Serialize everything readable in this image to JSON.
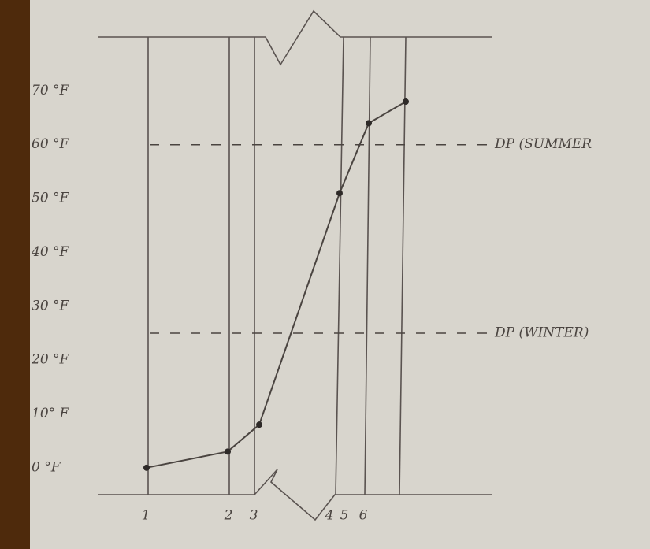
{
  "chart_data": {
    "type": "line",
    "categories": [
      "1",
      "2",
      "3",
      "4",
      "5",
      "6"
    ],
    "series": [
      {
        "color": "#4a4440",
        "values": [
          0,
          3,
          8,
          51,
          64,
          68
        ]
      }
    ],
    "ylim": [
      -5,
      80
    ],
    "yticks": [
      {
        "value": 0,
        "label": "0 °F"
      },
      {
        "value": 10,
        "label": "10° F"
      },
      {
        "value": 20,
        "label": "20 °F"
      },
      {
        "value": 30,
        "label": "30 °F"
      },
      {
        "value": 40,
        "label": "40 °F"
      },
      {
        "value": 50,
        "label": "50 °F"
      },
      {
        "value": 60,
        "label": "60 °F"
      },
      {
        "value": 70,
        "label": "70 °F"
      }
    ],
    "annotations": [
      {
        "label": "DP (SUMMER",
        "value": 60
      },
      {
        "label": "DP (WINTER)",
        "value": 25
      }
    ]
  }
}
